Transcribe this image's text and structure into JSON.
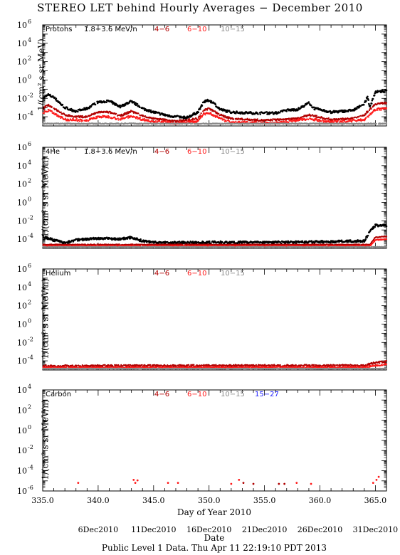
{
  "page": {
    "title": "STEREO LET behind Hourly Averages − December 2010",
    "x_axis_label": "Day of Year 2010",
    "date_axis_title": "Date",
    "footer": "Public Level 1 Data. Thu Apr 11 22:19:10 PDT 2013"
  },
  "colors": {
    "black": "#000000",
    "dark_red": "#b00000",
    "red": "#ff1a1a",
    "grey": "#8a8a8a",
    "blue": "#1a1aff"
  },
  "chart_data": [
    {
      "type": "scatter",
      "species": "Protons",
      "ylabel": "1/(cm² s sr MeV)",
      "yscale": "log",
      "ylim_exp": [
        -5,
        6
      ],
      "ytick_exps": [
        -4,
        -2,
        0,
        2,
        4,
        6
      ],
      "xlim": [
        335,
        366
      ],
      "xticks": [
        335,
        340,
        345,
        350,
        355,
        360,
        365
      ],
      "legend": [
        {
          "label": "1.8−3.6 MeV/n",
          "color": "black"
        },
        {
          "label": "4−6",
          "color": "dark_red"
        },
        {
          "label": "6−10",
          "color": "red"
        },
        {
          "label": "10−15",
          "color": "grey"
        }
      ],
      "series": [
        {
          "name": "1.8−3.6 MeV/n",
          "color": "black",
          "noise": 0.12,
          "profile": [
            [
              335,
              -2.0
            ],
            [
              335.5,
              -1.6
            ],
            [
              336,
              -1.9
            ],
            [
              337,
              -3.0
            ],
            [
              338,
              -3.4
            ],
            [
              339,
              -3.1
            ],
            [
              340,
              -2.4
            ],
            [
              341,
              -2.3
            ],
            [
              342,
              -2.9
            ],
            [
              343,
              -2.3
            ],
            [
              344,
              -3.1
            ],
            [
              345,
              -3.5
            ],
            [
              346,
              -3.8
            ],
            [
              347,
              -4.0
            ],
            [
              348,
              -4.1
            ],
            [
              349,
              -3.5
            ],
            [
              349.5,
              -2.4
            ],
            [
              350,
              -2.2
            ],
            [
              350.5,
              -2.6
            ],
            [
              351,
              -3.2
            ],
            [
              352,
              -3.5
            ],
            [
              354,
              -3.6
            ],
            [
              356,
              -3.6
            ],
            [
              357,
              -3.3
            ],
            [
              358,
              -3.2
            ],
            [
              359,
              -2.5
            ],
            [
              359.5,
              -3.1
            ],
            [
              361,
              -3.5
            ],
            [
              363,
              -3.3
            ],
            [
              364,
              -2.6
            ],
            [
              364.3,
              -1.8
            ],
            [
              364.5,
              -3.0
            ],
            [
              365,
              -1.3
            ],
            [
              366,
              -1.2
            ]
          ]
        },
        {
          "name": "4−6",
          "color": "dark_red",
          "noise": 0.1,
          "profile": [
            [
              335,
              -3.1
            ],
            [
              335.5,
              -2.7
            ],
            [
              336,
              -3.1
            ],
            [
              337,
              -3.8
            ],
            [
              338,
              -4.0
            ],
            [
              339,
              -4.0
            ],
            [
              340,
              -3.5
            ],
            [
              341,
              -3.5
            ],
            [
              342,
              -3.9
            ],
            [
              343,
              -3.4
            ],
            [
              344,
              -3.9
            ],
            [
              345,
              -4.2
            ],
            [
              347,
              -4.5
            ],
            [
              349,
              -4.2
            ],
            [
              349.5,
              -3.3
            ],
            [
              350,
              -3.1
            ],
            [
              351,
              -3.8
            ],
            [
              352,
              -4.2
            ],
            [
              355,
              -4.4
            ],
            [
              358,
              -4.2
            ],
            [
              359,
              -3.8
            ],
            [
              361,
              -4.3
            ],
            [
              363,
              -4.2
            ],
            [
              364,
              -3.8
            ],
            [
              365,
              -2.6
            ],
            [
              366,
              -2.5
            ]
          ]
        },
        {
          "name": "6−10",
          "color": "red",
          "noise": 0.12,
          "profile": [
            [
              335,
              -3.6
            ],
            [
              335.5,
              -3.3
            ],
            [
              336,
              -3.6
            ],
            [
              337,
              -4.3
            ],
            [
              339,
              -4.4
            ],
            [
              340,
              -4.0
            ],
            [
              341,
              -4.0
            ],
            [
              342,
              -4.3
            ],
            [
              343,
              -3.9
            ],
            [
              344,
              -4.3
            ],
            [
              345,
              -4.5
            ],
            [
              347,
              -4.7
            ],
            [
              349,
              -4.5
            ],
            [
              349.5,
              -3.7
            ],
            [
              350,
              -3.6
            ],
            [
              351,
              -4.2
            ],
            [
              352,
              -4.6
            ],
            [
              356,
              -4.7
            ],
            [
              359,
              -4.2
            ],
            [
              361,
              -4.6
            ],
            [
              364,
              -4.3
            ],
            [
              365,
              -3.2
            ],
            [
              366,
              -3.1
            ]
          ]
        },
        {
          "name": "10−15",
          "color": "grey",
          "noise": 0.05,
          "profile": [
            [
              335,
              -4.75
            ],
            [
              366,
              -4.75
            ]
          ]
        }
      ]
    },
    {
      "type": "scatter",
      "species": "4He",
      "ylabel": "1/(cm² s sr MeV/n)",
      "yscale": "log",
      "ylim_exp": [
        -5,
        6
      ],
      "ytick_exps": [
        -4,
        -2,
        0,
        2,
        4,
        6
      ],
      "xlim": [
        335,
        366
      ],
      "xticks": [
        335,
        340,
        345,
        350,
        355,
        360,
        365
      ],
      "legend": [
        {
          "label": "1.8−3.6 MeV/n",
          "color": "black"
        },
        {
          "label": "4−6",
          "color": "dark_red"
        },
        {
          "label": "6−10",
          "color": "red"
        },
        {
          "label": "10−15",
          "color": "grey"
        }
      ],
      "series": [
        {
          "name": "1.8−3.6 MeV/n",
          "color": "black",
          "noise": 0.12,
          "profile": [
            [
              335,
              -3.7
            ],
            [
              336,
              -4.1
            ],
            [
              337,
              -4.4
            ],
            [
              338,
              -4.1
            ],
            [
              340,
              -3.9
            ],
            [
              342,
              -4.0
            ],
            [
              343,
              -3.8
            ],
            [
              344,
              -4.2
            ],
            [
              346,
              -4.4
            ],
            [
              350,
              -4.35
            ],
            [
              355,
              -4.35
            ],
            [
              360,
              -4.3
            ],
            [
              364,
              -4.2
            ],
            [
              364.5,
              -3.2
            ],
            [
              365,
              -2.5
            ],
            [
              366,
              -2.5
            ]
          ]
        },
        {
          "name": "4−6",
          "color": "dark_red",
          "noise": 0.04,
          "profile": [
            [
              335,
              -4.6
            ],
            [
              364.5,
              -4.6
            ],
            [
              365,
              -3.8
            ],
            [
              366,
              -3.7
            ]
          ]
        },
        {
          "name": "6−10",
          "color": "red",
          "noise": 0.04,
          "profile": [
            [
              335,
              -4.75
            ],
            [
              364.5,
              -4.75
            ],
            [
              365,
              -4.1
            ],
            [
              366,
              -4.0
            ]
          ]
        },
        {
          "name": "10−15",
          "color": "grey",
          "noise": 0.03,
          "profile": [
            [
              335,
              -4.85
            ],
            [
              366,
              -4.85
            ]
          ]
        }
      ]
    },
    {
      "type": "scatter",
      "species": "Helium",
      "ylabel": "1/(cm² s sr MeV/n)",
      "yscale": "log",
      "ylim_exp": [
        -5,
        6
      ],
      "ytick_exps": [
        -4,
        -2,
        0,
        2,
        4,
        6
      ],
      "xlim": [
        335,
        366
      ],
      "xticks": [
        335,
        340,
        345,
        350,
        355,
        360,
        365
      ],
      "legend": [
        {
          "label": "4−6",
          "color": "dark_red"
        },
        {
          "label": "6−10",
          "color": "red"
        },
        {
          "label": "10−15",
          "color": "grey"
        }
      ],
      "series": [
        {
          "name": "4−6",
          "color": "dark_red",
          "noise": 0.1,
          "profile": [
            [
              335,
              -4.55
            ],
            [
              364,
              -4.5
            ],
            [
              365,
              -4.2
            ],
            [
              366,
              -4.1
            ]
          ]
        },
        {
          "name": "6−10",
          "color": "red",
          "noise": 0.08,
          "profile": [
            [
              335,
              -4.75
            ],
            [
              364,
              -4.7
            ],
            [
              365,
              -4.5
            ],
            [
              366,
              -4.4
            ]
          ]
        },
        {
          "name": "10−15",
          "color": "grey",
          "noise": 0.03,
          "profile": [
            [
              335,
              -4.85
            ],
            [
              366,
              -4.85
            ]
          ]
        }
      ]
    },
    {
      "type": "scatter",
      "species": "Carbon",
      "ylabel": "1/(cm² s sr MeV/n)",
      "yscale": "log",
      "ylim_exp": [
        -6,
        4
      ],
      "ytick_exps": [
        -6,
        -4,
        -2,
        0,
        2,
        4
      ],
      "xlim": [
        335,
        366
      ],
      "xticks": [
        335,
        340,
        345,
        350,
        355,
        360,
        365
      ],
      "legend": [
        {
          "label": "4−6",
          "color": "dark_red"
        },
        {
          "label": "6−10",
          "color": "red"
        },
        {
          "label": "10−15",
          "color": "grey"
        },
        {
          "label": "15−27",
          "color": "blue"
        }
      ],
      "points": [
        {
          "x": 338.2,
          "y_exp": -5.2,
          "color": "red"
        },
        {
          "x": 343.2,
          "y_exp": -4.9,
          "color": "red"
        },
        {
          "x": 343.35,
          "y_exp": -5.2,
          "color": "red"
        },
        {
          "x": 343.55,
          "y_exp": -4.95,
          "color": "red"
        },
        {
          "x": 346.3,
          "y_exp": -5.2,
          "color": "red"
        },
        {
          "x": 347.2,
          "y_exp": -5.2,
          "color": "red"
        },
        {
          "x": 352.0,
          "y_exp": -5.3,
          "color": "red"
        },
        {
          "x": 352.7,
          "y_exp": -4.9,
          "color": "red"
        },
        {
          "x": 353.1,
          "y_exp": -5.2,
          "color": "dark_red"
        },
        {
          "x": 354.0,
          "y_exp": -5.3,
          "color": "dark_red"
        },
        {
          "x": 356.3,
          "y_exp": -5.3,
          "color": "dark_red"
        },
        {
          "x": 356.8,
          "y_exp": -5.3,
          "color": "dark_red"
        },
        {
          "x": 357.9,
          "y_exp": -5.2,
          "color": "red"
        },
        {
          "x": 359.2,
          "y_exp": -5.3,
          "color": "red"
        },
        {
          "x": 364.8,
          "y_exp": -5.2,
          "color": "red"
        },
        {
          "x": 365.1,
          "y_exp": -4.9,
          "color": "red"
        },
        {
          "x": 365.3,
          "y_exp": -4.6,
          "color": "red"
        }
      ]
    }
  ],
  "date_axis": {
    "labels": [
      {
        "label": "6Dec2010",
        "doy": 340
      },
      {
        "label": "11Dec2010",
        "doy": 345
      },
      {
        "label": "16Dec2010",
        "doy": 350
      },
      {
        "label": "21Dec2010",
        "doy": 355
      },
      {
        "label": "26Dec2010",
        "doy": 360
      },
      {
        "label": "31Dec2010",
        "doy": 365
      }
    ]
  }
}
